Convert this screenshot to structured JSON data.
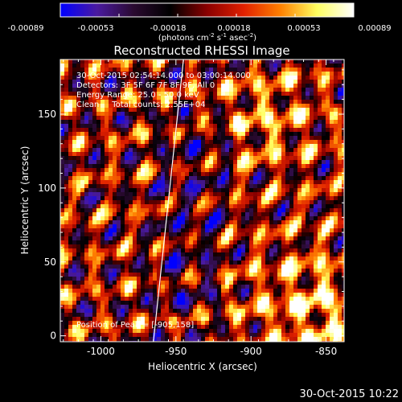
{
  "colorbar": {
    "tick_labels": [
      "-0.00089",
      "-0.00053",
      "-0.00018",
      "0.00018",
      "0.00053",
      "0.00089"
    ],
    "min": -0.00089,
    "max": 0.00089,
    "unit_label_prefix": "(photons cm",
    "unit_label_exp1": "-2",
    "unit_label_mid": " s",
    "unit_label_exp2": "-1",
    "unit_label_mid2": " asec",
    "unit_label_exp3": "-2",
    "unit_label_suffix": ")",
    "colors": [
      "#0000ff",
      "#4a1aa0",
      "#2a0a30",
      "#000000",
      "#8a0000",
      "#e02000",
      "#ff8000",
      "#ffff60",
      "#ffffff"
    ]
  },
  "info": {
    "line1": "30-Oct-2015 02:54:14.000 to 03:00:14.000",
    "line2": "Detectors: 3F 5F 6F 7F 8F 9F, All 0",
    "line3": "Energy Range: 25.0 - 50.0 keV",
    "line4": "Clean     Total counts: 2.55E+04",
    "peak": "Position of Peak = [-905,158]"
  },
  "footer": {
    "timestamp": "30-Oct-2015 10:22"
  },
  "chart_data": {
    "type": "heatmap",
    "title": "Reconstructed RHESSI Image",
    "xlabel": "Heliocentric X (arcsec)",
    "ylabel": "Heliocentric Y (arcsec)",
    "xlim": [
      -1027,
      -838
    ],
    "ylim": [
      -4,
      187
    ],
    "x_ticks": [
      -1000,
      -950,
      -900,
      -850
    ],
    "x_tick_labels": [
      "-1000",
      "-950",
      "-900",
      "-850"
    ],
    "y_ticks": [
      0,
      50,
      100,
      150
    ],
    "y_tick_labels": [
      "0",
      "50",
      "100",
      "150"
    ],
    "limb_line": [
      [
        -965,
        -4
      ],
      [
        -945,
        187
      ]
    ],
    "grid": false
  }
}
